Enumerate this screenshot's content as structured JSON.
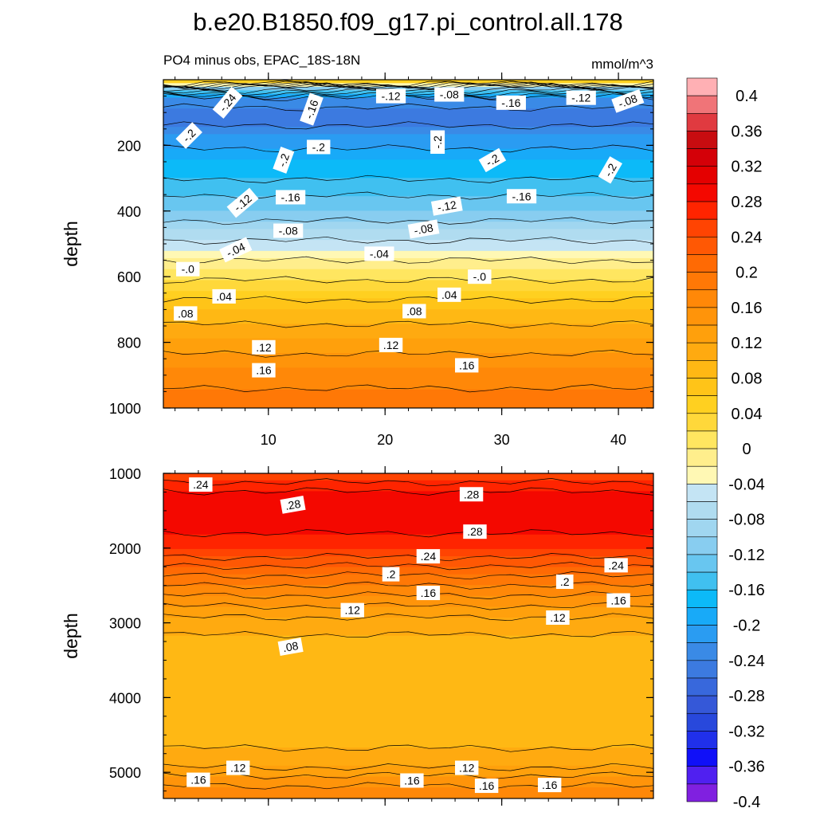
{
  "page": {
    "title": "b.e20.B1850.f09_g17.pi_control.all.178",
    "left_subtitle": "PO4 minus obs, EPAC_18S-18N",
    "right_subtitle": "mmol/m^3"
  },
  "chart_data": {
    "type": "contour",
    "title": "b.e20.B1850.f09_g17.pi_control.all.178",
    "subtitle": "PO4 minus obs, EPAC_18S-18N",
    "units": "mmol/m^3",
    "colorbar": {
      "levels": [
        -0.4,
        -0.38,
        -0.36,
        -0.34,
        -0.32,
        -0.3,
        -0.28,
        -0.26,
        -0.24,
        -0.22,
        -0.2,
        -0.18,
        -0.16,
        -0.14,
        -0.12,
        -0.1,
        -0.08,
        -0.06,
        -0.04,
        -0.02,
        0,
        0.02,
        0.04,
        0.06,
        0.08,
        0.1,
        0.12,
        0.14,
        0.16,
        0.18,
        0.2,
        0.22,
        0.24,
        0.26,
        0.28,
        0.3,
        0.32,
        0.34,
        0.36,
        0.38,
        0.4
      ],
      "tick_labels": [
        "0.4",
        "0.36",
        "0.32",
        "0.28",
        "0.24",
        "0.2",
        "0.16",
        "0.12",
        "0.08",
        "0.04",
        "0",
        "-0.04",
        "-0.08",
        "-0.12",
        "-0.16",
        "-0.2",
        "-0.24",
        "-0.28",
        "-0.32",
        "-0.36",
        "-0.4"
      ],
      "colors": [
        "#8020e0",
        "#5020f0",
        "#1010f8",
        "#2030ea",
        "#2848dc",
        "#3558d8",
        "#3868dc",
        "#3c7ae0",
        "#3a8ae6",
        "#2a9cf2",
        "#18aaf8",
        "#0cbaf8",
        "#40c0f0",
        "#68c6f0",
        "#88cdf0",
        "#a0d6f0",
        "#b0dcf0",
        "#c4e4f4",
        "#fff8b4",
        "#ffee8c",
        "#ffe660",
        "#ffd83a",
        "#ffd020",
        "#ffc418",
        "#ffb814",
        "#ffaa10",
        "#ffa00c",
        "#ff940a",
        "#ff8808",
        "#ff7806",
        "#ff6a04",
        "#ff5804",
        "#ff4402",
        "#ff2400",
        "#f40800",
        "#e40000",
        "#d40008",
        "#c80c10",
        "#e03a40",
        "#f07478",
        "#ffb0b4"
      ]
    },
    "panels": [
      {
        "name": "upper",
        "ylabel": "depth",
        "ylim": [
          0,
          1000
        ],
        "xlim": [
          1,
          43
        ],
        "yticks": [
          200,
          400,
          600,
          800,
          1000
        ],
        "ytick_labels": [
          "200",
          "400",
          "600",
          "800",
          "1000"
        ],
        "xticks": [
          10,
          20,
          30,
          40
        ],
        "xtick_labels": [
          "10",
          "20",
          "30",
          "40"
        ],
        "depth_profile": [
          {
            "depth": 10,
            "value": 0.04
          },
          {
            "depth": 25,
            "value": -0.1
          },
          {
            "depth": 60,
            "value": -0.22
          },
          {
            "depth": 110,
            "value": -0.26
          },
          {
            "depth": 170,
            "value": -0.22
          },
          {
            "depth": 250,
            "value": -0.18
          },
          {
            "depth": 330,
            "value": -0.15
          },
          {
            "depth": 400,
            "value": -0.12
          },
          {
            "depth": 460,
            "value": -0.08
          },
          {
            "depth": 520,
            "value": -0.04
          },
          {
            "depth": 580,
            "value": 0
          },
          {
            "depth": 640,
            "value": 0.04
          },
          {
            "depth": 700,
            "value": 0.08
          },
          {
            "depth": 790,
            "value": 0.12
          },
          {
            "depth": 880,
            "value": 0.16
          },
          {
            "depth": 1000,
            "value": 0.2
          }
        ],
        "contour_labels": [
          {
            "text": "-.24",
            "x": 6.5,
            "depth": 70,
            "angle": -50
          },
          {
            "text": "-.16",
            "x": 13.7,
            "depth": 90,
            "angle": -70
          },
          {
            "text": "-.12",
            "x": 20.5,
            "depth": 50,
            "angle": 0
          },
          {
            "text": "-.08",
            "x": 25.5,
            "depth": 45,
            "angle": 0
          },
          {
            "text": "-.16",
            "x": 30.8,
            "depth": 70,
            "angle": 0
          },
          {
            "text": "-.12",
            "x": 36.8,
            "depth": 55,
            "angle": 0
          },
          {
            "text": "-.08",
            "x": 40.8,
            "depth": 65,
            "angle": -20
          },
          {
            "text": "-.2",
            "x": 3.2,
            "depth": 170,
            "angle": -45
          },
          {
            "text": "-.2",
            "x": 14.3,
            "depth": 205,
            "angle": 0
          },
          {
            "text": "-.2",
            "x": 24.5,
            "depth": 190,
            "angle": -90
          },
          {
            "text": "-.2",
            "x": 11.3,
            "depth": 245,
            "angle": -70
          },
          {
            "text": "-.2",
            "x": 29.2,
            "depth": 245,
            "angle": -30
          },
          {
            "text": "-.2",
            "x": 39.3,
            "depth": 275,
            "angle": -60
          },
          {
            "text": "-.12",
            "x": 7.8,
            "depth": 375,
            "angle": -40
          },
          {
            "text": "-.16",
            "x": 11.9,
            "depth": 358,
            "angle": 0
          },
          {
            "text": "-.12",
            "x": 25.3,
            "depth": 385,
            "angle": -10
          },
          {
            "text": "-.16",
            "x": 31.7,
            "depth": 355,
            "angle": 0
          },
          {
            "text": "-.08",
            "x": 11.7,
            "depth": 460,
            "angle": 0
          },
          {
            "text": "-.08",
            "x": 23.3,
            "depth": 455,
            "angle": -10
          },
          {
            "text": "-.04",
            "x": 7.2,
            "depth": 518,
            "angle": -25
          },
          {
            "text": "-.04",
            "x": 19.5,
            "depth": 530,
            "angle": 0
          },
          {
            "text": "-.0",
            "x": 3.1,
            "depth": 577,
            "angle": 0
          },
          {
            "text": "-.0",
            "x": 28.1,
            "depth": 600,
            "angle": 0
          },
          {
            "text": ".04",
            "x": 6.2,
            "depth": 660,
            "angle": 0
          },
          {
            "text": ".04",
            "x": 25.5,
            "depth": 655,
            "angle": 0
          },
          {
            "text": ".08",
            "x": 2.9,
            "depth": 712,
            "angle": 0
          },
          {
            "text": ".08",
            "x": 22.5,
            "depth": 705,
            "angle": 0
          },
          {
            "text": ".12",
            "x": 9.6,
            "depth": 815,
            "angle": 0
          },
          {
            "text": ".12",
            "x": 20.5,
            "depth": 808,
            "angle": 0
          },
          {
            "text": ".16",
            "x": 9.6,
            "depth": 885,
            "angle": 0
          },
          {
            "text": ".16",
            "x": 27,
            "depth": 870,
            "angle": 0
          }
        ]
      },
      {
        "name": "lower",
        "ylabel": "depth",
        "ylim": [
          1000,
          5350
        ],
        "xlim": [
          1,
          43
        ],
        "yticks": [
          1000,
          2000,
          3000,
          4000,
          5000
        ],
        "ytick_labels": [
          "1000",
          "2000",
          "3000",
          "4000",
          "5000"
        ],
        "depth_profile": [
          {
            "depth": 1000,
            "value": 0.24
          },
          {
            "depth": 1300,
            "value": 0.29
          },
          {
            "depth": 1700,
            "value": 0.29
          },
          {
            "depth": 2000,
            "value": 0.26
          },
          {
            "depth": 2300,
            "value": 0.21
          },
          {
            "depth": 2700,
            "value": 0.15
          },
          {
            "depth": 3000,
            "value": 0.11
          },
          {
            "depth": 3400,
            "value": 0.085
          },
          {
            "depth": 3900,
            "value": 0.09
          },
          {
            "depth": 4500,
            "value": 0.095
          },
          {
            "depth": 4850,
            "value": 0.105
          },
          {
            "depth": 5100,
            "value": 0.15
          },
          {
            "depth": 5350,
            "value": 0.18
          }
        ],
        "contour_labels": [
          {
            "text": ".24",
            "x": 4.2,
            "depth": 1150,
            "angle": 0
          },
          {
            "text": ".28",
            "x": 12.1,
            "depth": 1420,
            "angle": -10
          },
          {
            "text": ".28",
            "x": 27.4,
            "depth": 1280,
            "angle": 0
          },
          {
            "text": ".28",
            "x": 27.7,
            "depth": 1780,
            "angle": 0
          },
          {
            "text": ".24",
            "x": 23.7,
            "depth": 2110,
            "angle": 0
          },
          {
            "text": ".24",
            "x": 39.8,
            "depth": 2230,
            "angle": 0
          },
          {
            "text": ".2",
            "x": 20.5,
            "depth": 2350,
            "angle": 0
          },
          {
            "text": ".2",
            "x": 35.4,
            "depth": 2450,
            "angle": 0
          },
          {
            "text": ".16",
            "x": 23.7,
            "depth": 2600,
            "angle": 0
          },
          {
            "text": ".16",
            "x": 40,
            "depth": 2700,
            "angle": 0
          },
          {
            "text": ".12",
            "x": 17.2,
            "depth": 2830,
            "angle": 0
          },
          {
            "text": ".12",
            "x": 34.8,
            "depth": 2930,
            "angle": 0
          },
          {
            "text": ".08",
            "x": 11.9,
            "depth": 3320,
            "angle": -10
          },
          {
            "text": ".12",
            "x": 7.4,
            "depth": 4940,
            "angle": 0
          },
          {
            "text": ".16",
            "x": 4,
            "depth": 5100,
            "angle": 0
          },
          {
            "text": ".16",
            "x": 22.3,
            "depth": 5110,
            "angle": 0
          },
          {
            "text": ".12",
            "x": 27,
            "depth": 4940,
            "angle": 0
          },
          {
            "text": ".16",
            "x": 28.7,
            "depth": 5180,
            "angle": 0
          },
          {
            "text": ".16",
            "x": 34.1,
            "depth": 5170,
            "angle": 0
          }
        ]
      }
    ]
  }
}
